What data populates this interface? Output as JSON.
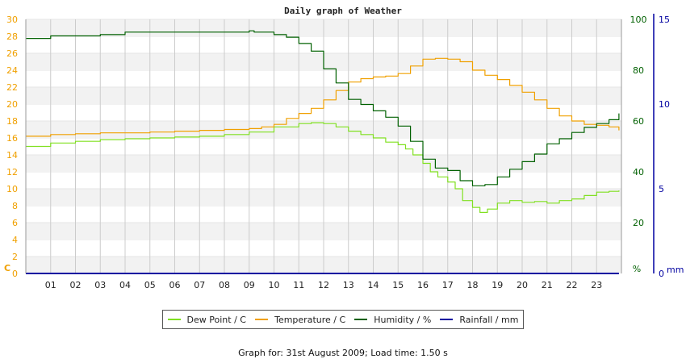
{
  "chart_data": {
    "type": "line",
    "title": "Daily graph of Weather",
    "x_ticks": [
      "01",
      "02",
      "03",
      "04",
      "05",
      "06",
      "07",
      "08",
      "09",
      "10",
      "11",
      "12",
      "13",
      "14",
      "15",
      "16",
      "17",
      "18",
      "19",
      "20",
      "21",
      "22",
      "23"
    ],
    "xlim": [
      0,
      24
    ],
    "axes": {
      "temperature": {
        "unit_label": "C",
        "ticks": [
          0,
          2,
          4,
          6,
          8,
          10,
          12,
          14,
          16,
          18,
          20,
          22,
          24,
          26,
          28,
          30
        ],
        "range": [
          0,
          30
        ],
        "color": "#f0a000",
        "position": "left"
      },
      "humidity": {
        "unit_label": "%",
        "ticks": [
          0,
          20,
          40,
          60,
          80,
          100
        ],
        "range": [
          0,
          100
        ],
        "color": "#006000",
        "position": "right"
      },
      "rainfall": {
        "unit_label": "mm",
        "ticks": [
          0,
          5,
          10,
          15
        ],
        "range": [
          0,
          15
        ],
        "color": "#0000a0",
        "position": "right-outer"
      }
    },
    "series": [
      {
        "name": "Dew Point / C",
        "color": "#80e020",
        "axis": "temperature",
        "x": [
          0,
          1,
          2,
          3,
          4,
          5,
          6,
          7,
          8,
          9,
          10,
          11,
          11.5,
          12,
          12.5,
          13,
          13.5,
          14,
          14.5,
          15,
          15.3,
          15.6,
          16,
          16.3,
          16.6,
          17,
          17.3,
          17.6,
          18,
          18.3,
          18.6,
          19,
          19.5,
          20,
          20.5,
          21,
          21.5,
          22,
          22.5,
          23,
          23.5,
          23.9
        ],
        "y": [
          15.0,
          15.4,
          15.6,
          15.8,
          15.9,
          16.0,
          16.1,
          16.2,
          16.4,
          16.7,
          17.3,
          17.7,
          17.8,
          17.7,
          17.3,
          16.8,
          16.4,
          16.0,
          15.5,
          15.2,
          14.7,
          14.0,
          13.0,
          12.0,
          11.4,
          10.8,
          10.0,
          8.6,
          7.8,
          7.2,
          7.6,
          8.3,
          8.6,
          8.4,
          8.5,
          8.3,
          8.6,
          8.8,
          9.2,
          9.6,
          9.7,
          9.8
        ]
      },
      {
        "name": "Temperature / C",
        "color": "#f0a000",
        "axis": "temperature",
        "x": [
          0,
          1,
          2,
          3,
          4,
          5,
          6,
          7,
          8,
          9,
          9.5,
          10,
          10.5,
          11,
          11.5,
          12,
          12.5,
          13,
          13.5,
          14,
          14.5,
          15,
          15.5,
          16,
          16.5,
          17,
          17.5,
          18,
          18.5,
          19,
          19.5,
          20,
          20.5,
          21,
          21.5,
          22,
          22.5,
          23,
          23.5,
          23.9
        ],
        "y": [
          16.2,
          16.4,
          16.5,
          16.6,
          16.6,
          16.7,
          16.8,
          16.9,
          17.0,
          17.1,
          17.3,
          17.6,
          18.3,
          18.9,
          19.5,
          20.5,
          21.6,
          22.6,
          23.0,
          23.2,
          23.3,
          23.6,
          24.5,
          25.3,
          25.4,
          25.3,
          25.0,
          24.0,
          23.4,
          22.9,
          22.2,
          21.4,
          20.5,
          19.5,
          18.6,
          18.0,
          17.6,
          17.5,
          17.3,
          16.9
        ]
      },
      {
        "name": "Humidity / %",
        "color": "#006000",
        "axis": "humidity",
        "x": [
          0,
          0.5,
          1,
          2,
          2.5,
          3,
          3.5,
          4,
          5,
          6,
          7,
          8,
          8.9,
          9,
          9.2,
          10,
          10.5,
          11,
          11.5,
          12,
          12.5,
          13,
          13.5,
          14,
          14.5,
          15,
          15.5,
          16,
          16.5,
          17,
          17.5,
          18,
          18.5,
          19,
          19.5,
          20,
          20.5,
          21,
          21.5,
          22,
          22.5,
          23,
          23.5,
          23.9
        ],
        "y": [
          92.5,
          92.5,
          93.5,
          93.5,
          93.5,
          94,
          94,
          95,
          95,
          95,
          95,
          95,
          95,
          95.5,
          95,
          94,
          93,
          90.5,
          87.5,
          80.5,
          75,
          68.5,
          66.5,
          64,
          61.5,
          58,
          52,
          45,
          41.5,
          40.5,
          36.5,
          34.5,
          35,
          38,
          41,
          44,
          47,
          51,
          53,
          55.5,
          57.5,
          59,
          60.5,
          63
        ]
      },
      {
        "name": "Rainfall / mm",
        "color": "#0000a0",
        "axis": "rainfall",
        "x": [
          0,
          23.9
        ],
        "y": [
          0,
          0
        ]
      }
    ],
    "legend_position": "bottom",
    "grid": true,
    "footer": "Graph for: 31st August 2009; Load time: 1.50 s"
  }
}
